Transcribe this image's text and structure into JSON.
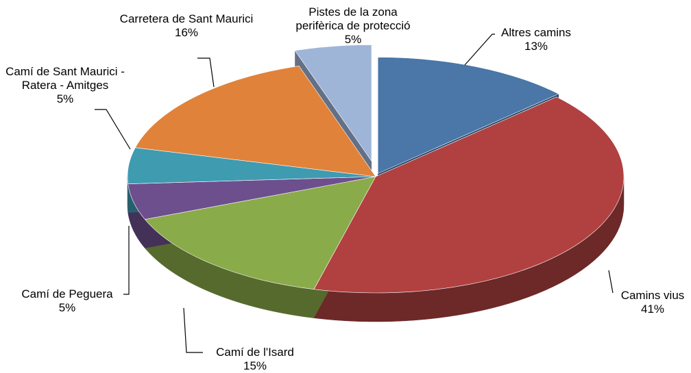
{
  "chart_data": {
    "type": "pie",
    "categories": [
      "Altres camins",
      "Camins vius",
      "Camí de l'Isard",
      "Camí de Peguera",
      "Camí de Sant Maurici - Ratera - Amitges",
      "Carretera de Sant Maurici",
      "Pistes de la zona perifèrica de protecció"
    ],
    "values": [
      13,
      41,
      15,
      5,
      5,
      16,
      5
    ],
    "value_labels": [
      "13%",
      "41%",
      "15%",
      "5%",
      "5%",
      "16%",
      "5%"
    ],
    "colors": [
      "#4a76a8",
      "#b04140",
      "#8aab4a",
      "#6d4f8e",
      "#3f9bb0",
      "#e0823a",
      "#9fb5d8"
    ]
  }
}
